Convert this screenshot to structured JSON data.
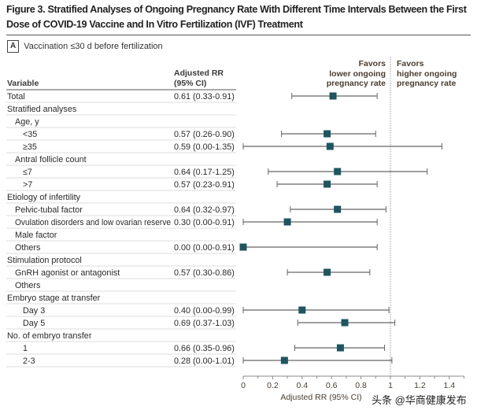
{
  "figure": {
    "title": "Figure 3. Stratified Analyses of Ongoing Pregnancy Rate With Different Time Intervals Between the First Dose of COVID-19 Vaccine and In Vitro Fertilization (IVF) Treatment",
    "panel_label": "A",
    "panel_title": "Vaccination ≤30 d before fertilization",
    "watermark": "头条 @华商健康发布"
  },
  "chart_data": {
    "type": "forest",
    "columns": {
      "variable": "Variable",
      "rr": [
        "Adjusted RR",
        "(95% CI)"
      ]
    },
    "favors_left": [
      "Favors",
      "lower ongoing",
      "pregnancy rate"
    ],
    "favors_right": [
      "Favors",
      "higher ongoing",
      "pregnancy rate"
    ],
    "xlabel": "Adjusted RR (95% CI)",
    "xlim": [
      0,
      1.5
    ],
    "xticks": [
      0,
      0.2,
      0.4,
      0.6,
      0.8,
      1,
      1.2,
      1.4
    ],
    "xtick_labels": [
      "0",
      "0.2",
      "0.4",
      "0.6",
      "0.8",
      "1",
      "1.2",
      "1.4"
    ],
    "reference_line": 1,
    "marker_color": "#1d5560",
    "rows": [
      {
        "label": "Total",
        "indent": 0,
        "rr_text": "0.61 (0.33-0.91)",
        "rr": 0.61,
        "lo": 0.33,
        "hi": 0.91
      },
      {
        "label": "Stratified analyses",
        "indent": 0
      },
      {
        "label": "Age, y",
        "indent": 1
      },
      {
        "label": "<35",
        "indent": 2,
        "rr_text": "0.57 (0.26-0.90)",
        "rr": 0.57,
        "lo": 0.26,
        "hi": 0.9
      },
      {
        "label": "≥35",
        "indent": 2,
        "rr_text": "0.59 (0.00-1.35)",
        "rr": 0.59,
        "lo": 0.0,
        "hi": 1.35
      },
      {
        "label": "Antral follicle count",
        "indent": 1
      },
      {
        "label": "≤7",
        "indent": 2,
        "rr_text": "0.64 (0.17-1.25)",
        "rr": 0.64,
        "lo": 0.17,
        "hi": 1.25
      },
      {
        "label": ">7",
        "indent": 2,
        "rr_text": "0.57 (0.23-0.91)",
        "rr": 0.57,
        "lo": 0.23,
        "hi": 0.91
      },
      {
        "label": "Etiology of infertility",
        "indent": 0
      },
      {
        "label": "Pelvic-tubal factor",
        "indent": 1,
        "rr_text": "0.64 (0.32-0.97)",
        "rr": 0.64,
        "lo": 0.32,
        "hi": 0.97
      },
      {
        "label": "Ovulation disorders and low ovarian reserve",
        "indent": 1,
        "rr_text": "0.30 (0.00-0.91)",
        "rr": 0.3,
        "lo": 0.0,
        "hi": 0.91
      },
      {
        "label": "Male factor",
        "indent": 1
      },
      {
        "label": "Others",
        "indent": 1,
        "rr_text": "0.00 (0.00-0.91)",
        "rr": 0.0,
        "lo": 0.0,
        "hi": 0.91
      },
      {
        "label": "Stimulation protocol",
        "indent": 0
      },
      {
        "label": "GnRH agonist or antagonist",
        "indent": 1,
        "rr_text": "0.57 (0.30-0.86)",
        "rr": 0.57,
        "lo": 0.3,
        "hi": 0.86
      },
      {
        "label": "Others",
        "indent": 1
      },
      {
        "label": "Embryo stage at transfer",
        "indent": 0
      },
      {
        "label": "Day 3",
        "indent": 2,
        "rr_text": "0.40 (0.00-0.99)",
        "rr": 0.4,
        "lo": 0.0,
        "hi": 0.99
      },
      {
        "label": "Day 5",
        "indent": 2,
        "rr_text": "0.69 (0.37-1.03)",
        "rr": 0.69,
        "lo": 0.37,
        "hi": 1.03
      },
      {
        "label": "No. of embryo transfer",
        "indent": 0
      },
      {
        "label": "1",
        "indent": 2,
        "rr_text": "0.66 (0.35-0.96)",
        "rr": 0.66,
        "lo": 0.35,
        "hi": 0.96
      },
      {
        "label": "2-3",
        "indent": 2,
        "rr_text": "0.28 (0.00-1.01)",
        "rr": 0.28,
        "lo": 0.0,
        "hi": 1.01
      }
    ]
  }
}
